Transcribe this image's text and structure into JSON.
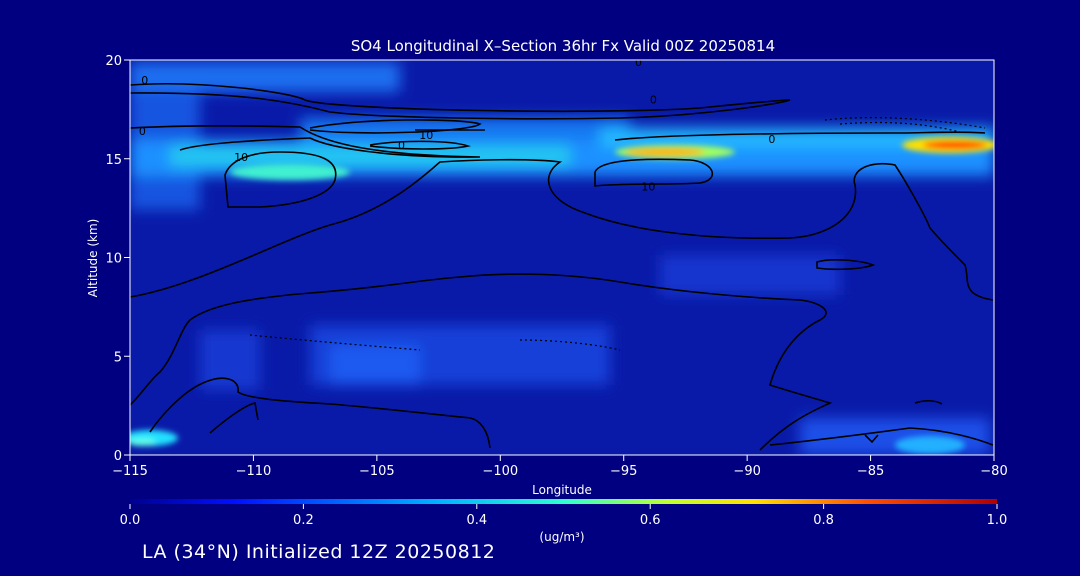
{
  "chart_data": {
    "type": "heatmap",
    "title": "SO4 Longitudinal X–Section 36hr  Fx Valid 00Z 20250814",
    "xlabel": "Longitude",
    "ylabel": "Altitude (km)",
    "xlim": [
      -115,
      -80
    ],
    "ylim": [
      0,
      20
    ],
    "x_ticks": [
      -115,
      -110,
      -105,
      -100,
      -95,
      -90,
      -85,
      -80
    ],
    "x_tick_labels": [
      "−115",
      "−110",
      "−105",
      "−100",
      "−95",
      "−90",
      "−85",
      "−80"
    ],
    "y_ticks": [
      0,
      5,
      10,
      15,
      20
    ],
    "y_tick_labels": [
      "0",
      "5",
      "10",
      "15",
      "20"
    ],
    "colorbar": {
      "min": 0.0,
      "max": 1.0,
      "ticks": [
        0.0,
        0.2,
        0.4,
        0.6,
        0.8,
        1.0
      ],
      "tick_labels": [
        "0.0",
        "0.2",
        "0.4",
        "0.6",
        "0.8",
        "1.0"
      ],
      "units": "(ug/m³)"
    },
    "concentration_features": [
      {
        "lon_range": [
          -115,
          -80
        ],
        "alt_km": 15.3,
        "value": 0.4
      },
      {
        "lon_range": [
          -96,
          -90
        ],
        "alt_km": 15.3,
        "value": 0.72
      },
      {
        "lon_range": [
          -85,
          -80
        ],
        "alt_km": 15.7,
        "value": 0.85
      },
      {
        "lon_range": [
          -110,
          -98
        ],
        "alt_km": 14.0,
        "value": 0.32
      },
      {
        "lon_range": [
          -115,
          -108
        ],
        "alt_km": 19.0,
        "value": 0.3
      },
      {
        "lon_range": [
          -115,
          -112
        ],
        "alt_km": 0.7,
        "value": 0.38
      },
      {
        "lon_range": [
          -85,
          -82
        ],
        "alt_km": 0.5,
        "value": 0.3
      },
      {
        "lon_range": [
          -106,
          -96
        ],
        "alt_km": 5.0,
        "value": 0.18
      }
    ],
    "contour_labels": [
      {
        "text": "0",
        "lon": -114.4,
        "alt_km": 19.0
      },
      {
        "text": "0",
        "lon": -94.4,
        "alt_km": 19.9
      },
      {
        "text": "0",
        "lon": -93.8,
        "alt_km": 18.0
      },
      {
        "text": "0",
        "lon": -114.5,
        "alt_km": 16.4
      },
      {
        "text": "10",
        "lon": -103.0,
        "alt_km": 16.2
      },
      {
        "text": "0",
        "lon": -104.0,
        "alt_km": 15.7
      },
      {
        "text": "10",
        "lon": -110.5,
        "alt_km": 15.1
      },
      {
        "text": "0",
        "lon": -89.0,
        "alt_km": 16.0
      },
      {
        "text": "10",
        "lon": -94.0,
        "alt_km": 13.6
      }
    ]
  },
  "footer": {
    "caption": "LA (34°N) Initialized 12Z 20250812"
  }
}
